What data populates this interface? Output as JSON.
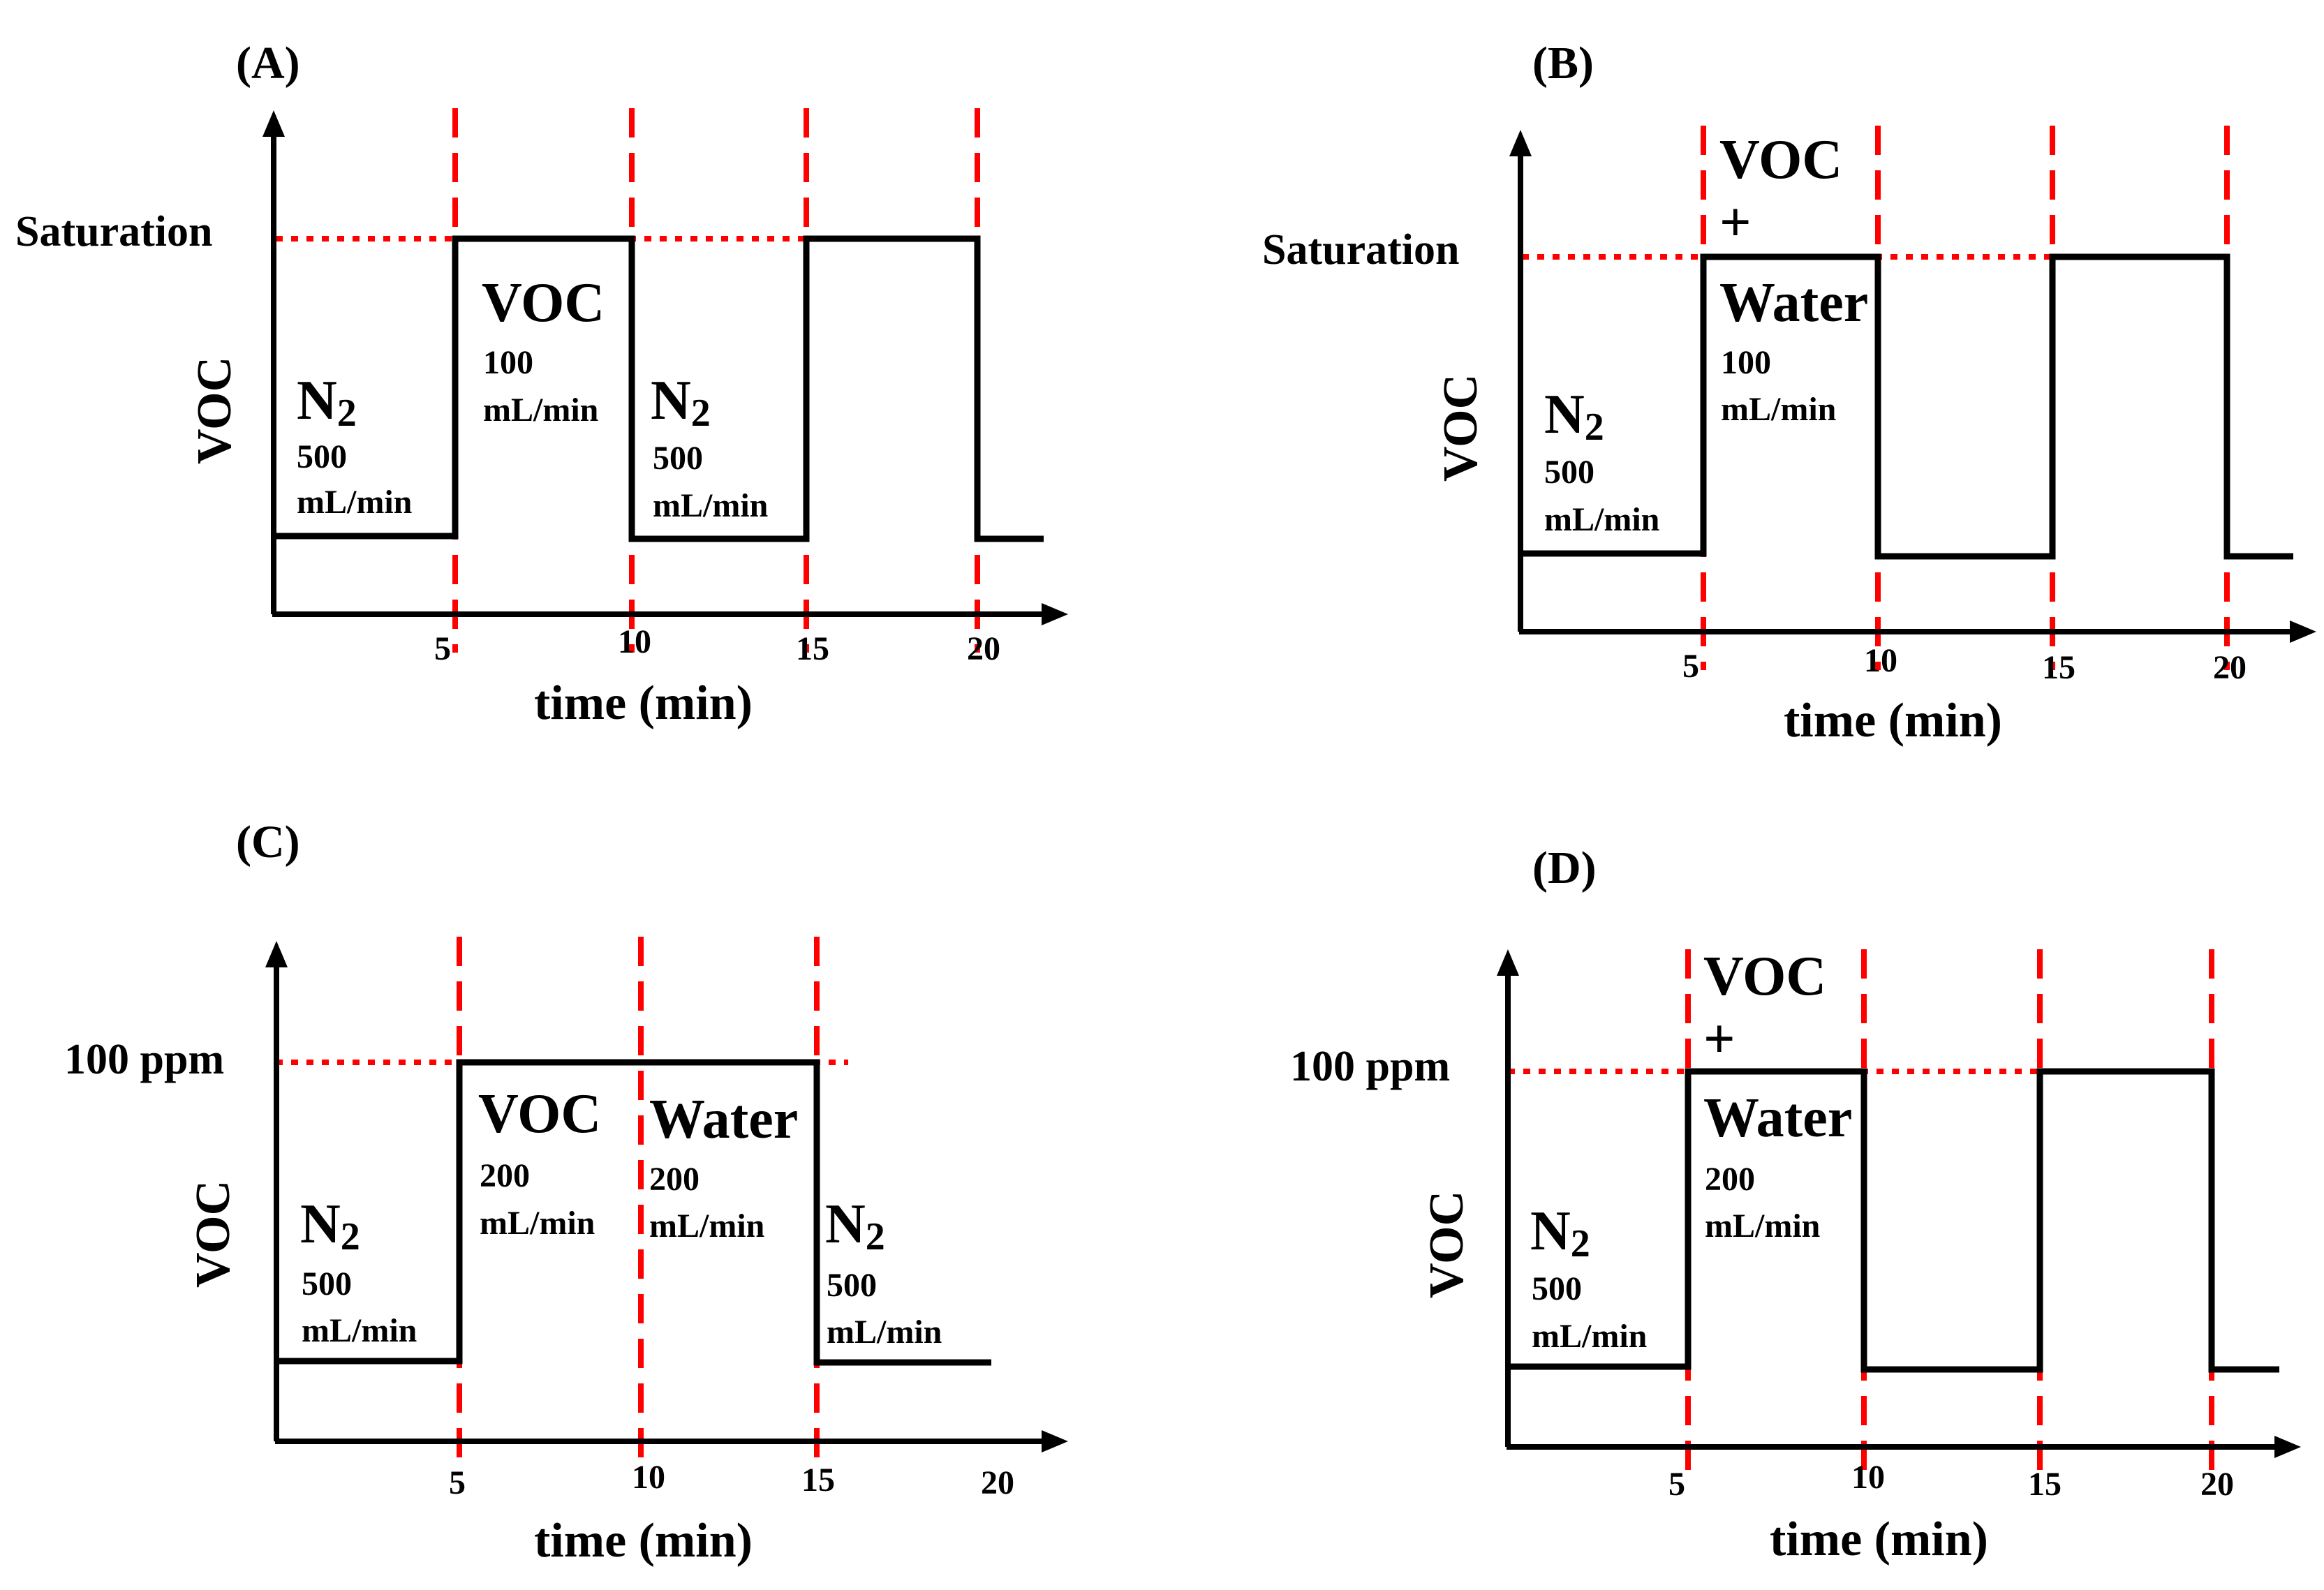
{
  "colors": {
    "marker": "#ff0000",
    "line": "#000000",
    "background": "#ffffff"
  },
  "axis": {
    "x_label": "time (min)",
    "y_label": "VOC",
    "ticks": [
      "5",
      "10",
      "15",
      "20"
    ]
  },
  "panels": [
    {
      "id": "A",
      "label": "(A)",
      "level_label": "Saturation",
      "segments": [
        {
          "gas": "N",
          "sub": "2",
          "rate": "500",
          "unit": "mL/min"
        },
        {
          "gas": "VOC",
          "rate": "100",
          "unit": "mL/min"
        },
        {
          "gas": "N",
          "sub": "2",
          "rate": "500",
          "unit": "mL/min"
        }
      ]
    },
    {
      "id": "B",
      "label": "(B)",
      "level_label": "Saturation",
      "segments": [
        {
          "gas": "N",
          "sub": "2",
          "rate": "500",
          "unit": "mL/min"
        },
        {
          "gas_lines": [
            "VOC",
            "+",
            "Water"
          ],
          "rate": "100",
          "unit": "mL/min"
        }
      ]
    },
    {
      "id": "C",
      "label": "(C)",
      "level_label": "100 ppm",
      "segments": [
        {
          "gas": "N",
          "sub": "2",
          "rate": "500",
          "unit": "mL/min"
        },
        {
          "gas": "VOC",
          "rate": "200",
          "unit": "mL/min"
        },
        {
          "gas": "Water",
          "rate": "200",
          "unit": "mL/min"
        },
        {
          "gas": "N",
          "sub": "2",
          "rate": "500",
          "unit": "mL/min"
        }
      ]
    },
    {
      "id": "D",
      "label": "(D)",
      "level_label": "100 ppm",
      "segments": [
        {
          "gas": "N",
          "sub": "2",
          "rate": "500",
          "unit": "mL/min"
        },
        {
          "gas_lines": [
            "VOC",
            "+",
            "Water"
          ],
          "rate": "200",
          "unit": "mL/min"
        }
      ]
    }
  ]
}
